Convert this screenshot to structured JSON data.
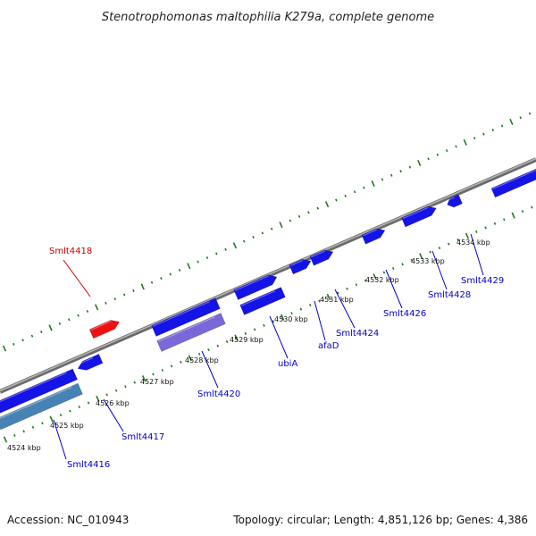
{
  "title": "Stenotrophomonas maltophilia K279a, complete genome",
  "footer": {
    "accession": "Accession: NC_010943",
    "summary": "Topology: circular; Length: 4,851,126 bp; Genes: 4,386"
  },
  "colors": {
    "backbone": "#8a8a8a",
    "tick": "#1f7a1f",
    "gene_forward": "#1414e6",
    "gene_reverse": "#1414e6",
    "gene_highlight": "#ee1111",
    "gene_pseudo": "#7b68d8",
    "gene_rna": "#4682b4",
    "label_default": "#0000cc",
    "label_highlight": "#cc0000"
  },
  "scale_labels": [
    "4524 kbp",
    "4525 kbp",
    "4526 kbp",
    "4527 kbp",
    "4528 kbp",
    "4529 kbp",
    "4530 kbp",
    "4531 kbp",
    "4532 kbp",
    "4533 kbp",
    "4534 kbp"
  ],
  "gene_labels": [
    {
      "text": "Smlt4418",
      "kind": "highlight"
    },
    {
      "text": "Smlt4416",
      "kind": "default"
    },
    {
      "text": "Smlt4417",
      "kind": "default"
    },
    {
      "text": "Smlt4420",
      "kind": "default"
    },
    {
      "text": "ubiA",
      "kind": "default"
    },
    {
      "text": "afaD",
      "kind": "default"
    },
    {
      "text": "Smlt4424",
      "kind": "default"
    },
    {
      "text": "Smlt4426",
      "kind": "default"
    },
    {
      "text": "Smlt4428",
      "kind": "default"
    },
    {
      "text": "Smlt4429",
      "kind": "default"
    }
  ]
}
